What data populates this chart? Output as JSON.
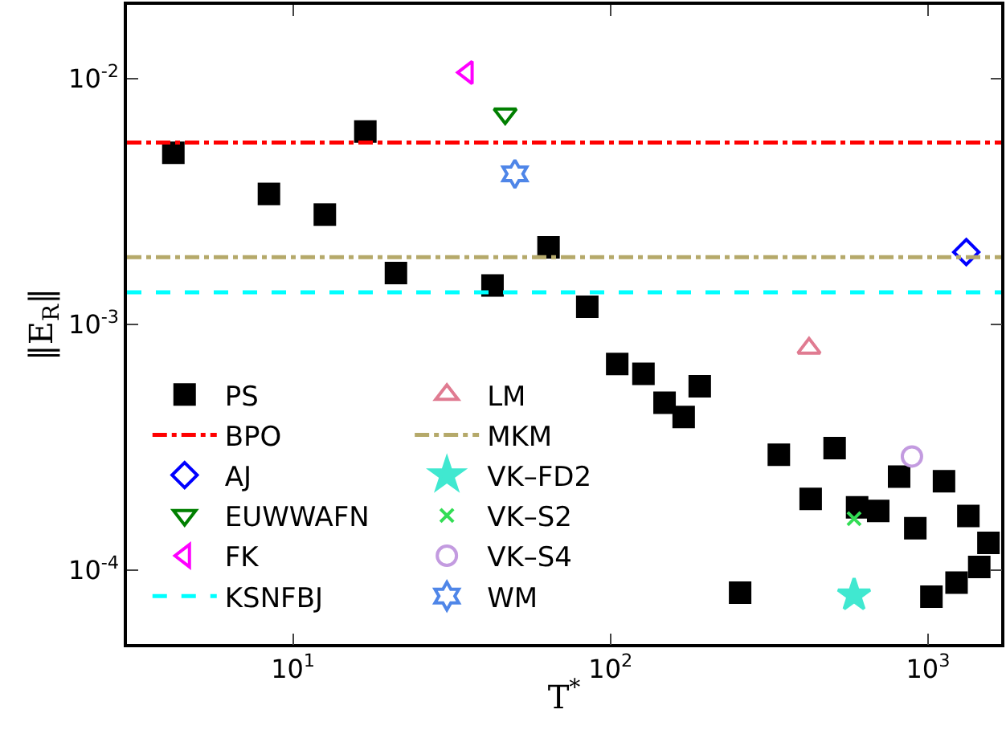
{
  "chart_data": {
    "type": "scatter",
    "xlabel": "T$^{*}$",
    "ylabel": "‖E$_{R}$‖",
    "log": "xy",
    "grid": false,
    "legend": "bottom left",
    "xlim": [
      3,
      1700
    ],
    "ylim": [
      5e-05,
      0.02
    ],
    "xticks": [
      {
        "value": 10,
        "label": "10$^{1}$"
      },
      {
        "value": 100,
        "label": "10$^{2}$"
      },
      {
        "value": 1000,
        "label": "10$^{3}$"
      }
    ],
    "yticks": [
      {
        "value": 0.0001,
        "label": "10$^{-4}$"
      },
      {
        "value": 0.001,
        "label": "10$^{-3}$"
      },
      {
        "value": 0.01,
        "label": "10$^{-2}$"
      }
    ],
    "series": [
      {
        "name": "PS",
        "color": "#000000",
        "marker": "square",
        "x": [
          4.2,
          8.4,
          12.6,
          16.9,
          21.1,
          42.5,
          63.8,
          84.5,
          105,
          127,
          148,
          170,
          191,
          256,
          339,
          427,
          508,
          598,
          697,
          811,
          912,
          1025,
          1123,
          1230,
          1340,
          1450,
          1550
        ],
        "values": [
          0.005,
          0.0034,
          0.0028,
          0.0061,
          0.00162,
          0.00144,
          0.00206,
          0.00118,
          0.00069,
          0.00063,
          0.00048,
          0.00042,
          0.00056,
          8.1e-05,
          0.000295,
          0.000195,
          0.000314,
          0.00018,
          0.000174,
          0.00024,
          0.000148,
          7.8e-05,
          0.00023,
          8.9e-05,
          0.000166,
          0.000103,
          0.000129
        ]
      },
      {
        "name": "BPO",
        "type": "line",
        "color": "#ff0000",
        "line_style": "dashdot",
        "x": [
          3,
          1700
        ],
        "values": [
          0.0055,
          0.0055
        ]
      },
      {
        "name": "AJ",
        "color": "#0000ff",
        "marker": "diamond",
        "x": [
          1320
        ],
        "values": [
          0.00197
        ]
      },
      {
        "name": "EUWWAFN",
        "color": "#007f00",
        "marker": "triangle-down",
        "x": [
          46.6
        ],
        "values": [
          0.0072
        ]
      },
      {
        "name": "FK",
        "color": "#ff00ff",
        "marker": "triangle-left",
        "x": [
          35.4
        ],
        "values": [
          0.0106
        ]
      },
      {
        "name": "KSNFBJ",
        "type": "line",
        "color": "#00ffff",
        "line_style": "dashed",
        "x": [
          3,
          1700
        ],
        "values": [
          0.00135,
          0.00135
        ]
      },
      {
        "name": "LM",
        "color": "#e07b91",
        "marker": "triangle-up",
        "x": [
          422
        ],
        "values": [
          0.0008
        ]
      },
      {
        "name": "MKM",
        "type": "line",
        "color": "#b5a96a",
        "line_style": "dashdot",
        "x": [
          3,
          1700
        ],
        "values": [
          0.00188,
          0.00188
        ]
      },
      {
        "name": "VK–FD2",
        "color": "#40e8d0",
        "marker": "star",
        "x": [
          585
        ],
        "values": [
          7.9e-05
        ]
      },
      {
        "name": "VK–S2",
        "color": "#33dd55",
        "marker": "cross",
        "x": [
          585
        ],
        "values": [
          0.000162
        ]
      },
      {
        "name": "VK–S4",
        "color": "#c39be0",
        "marker": "circle",
        "x": [
          890
        ],
        "values": [
          0.00029
        ]
      },
      {
        "name": "WM",
        "color": "#4f86e8",
        "x": [
          50
        ],
        "values": [
          0.0041
        ]
      }
    ]
  }
}
